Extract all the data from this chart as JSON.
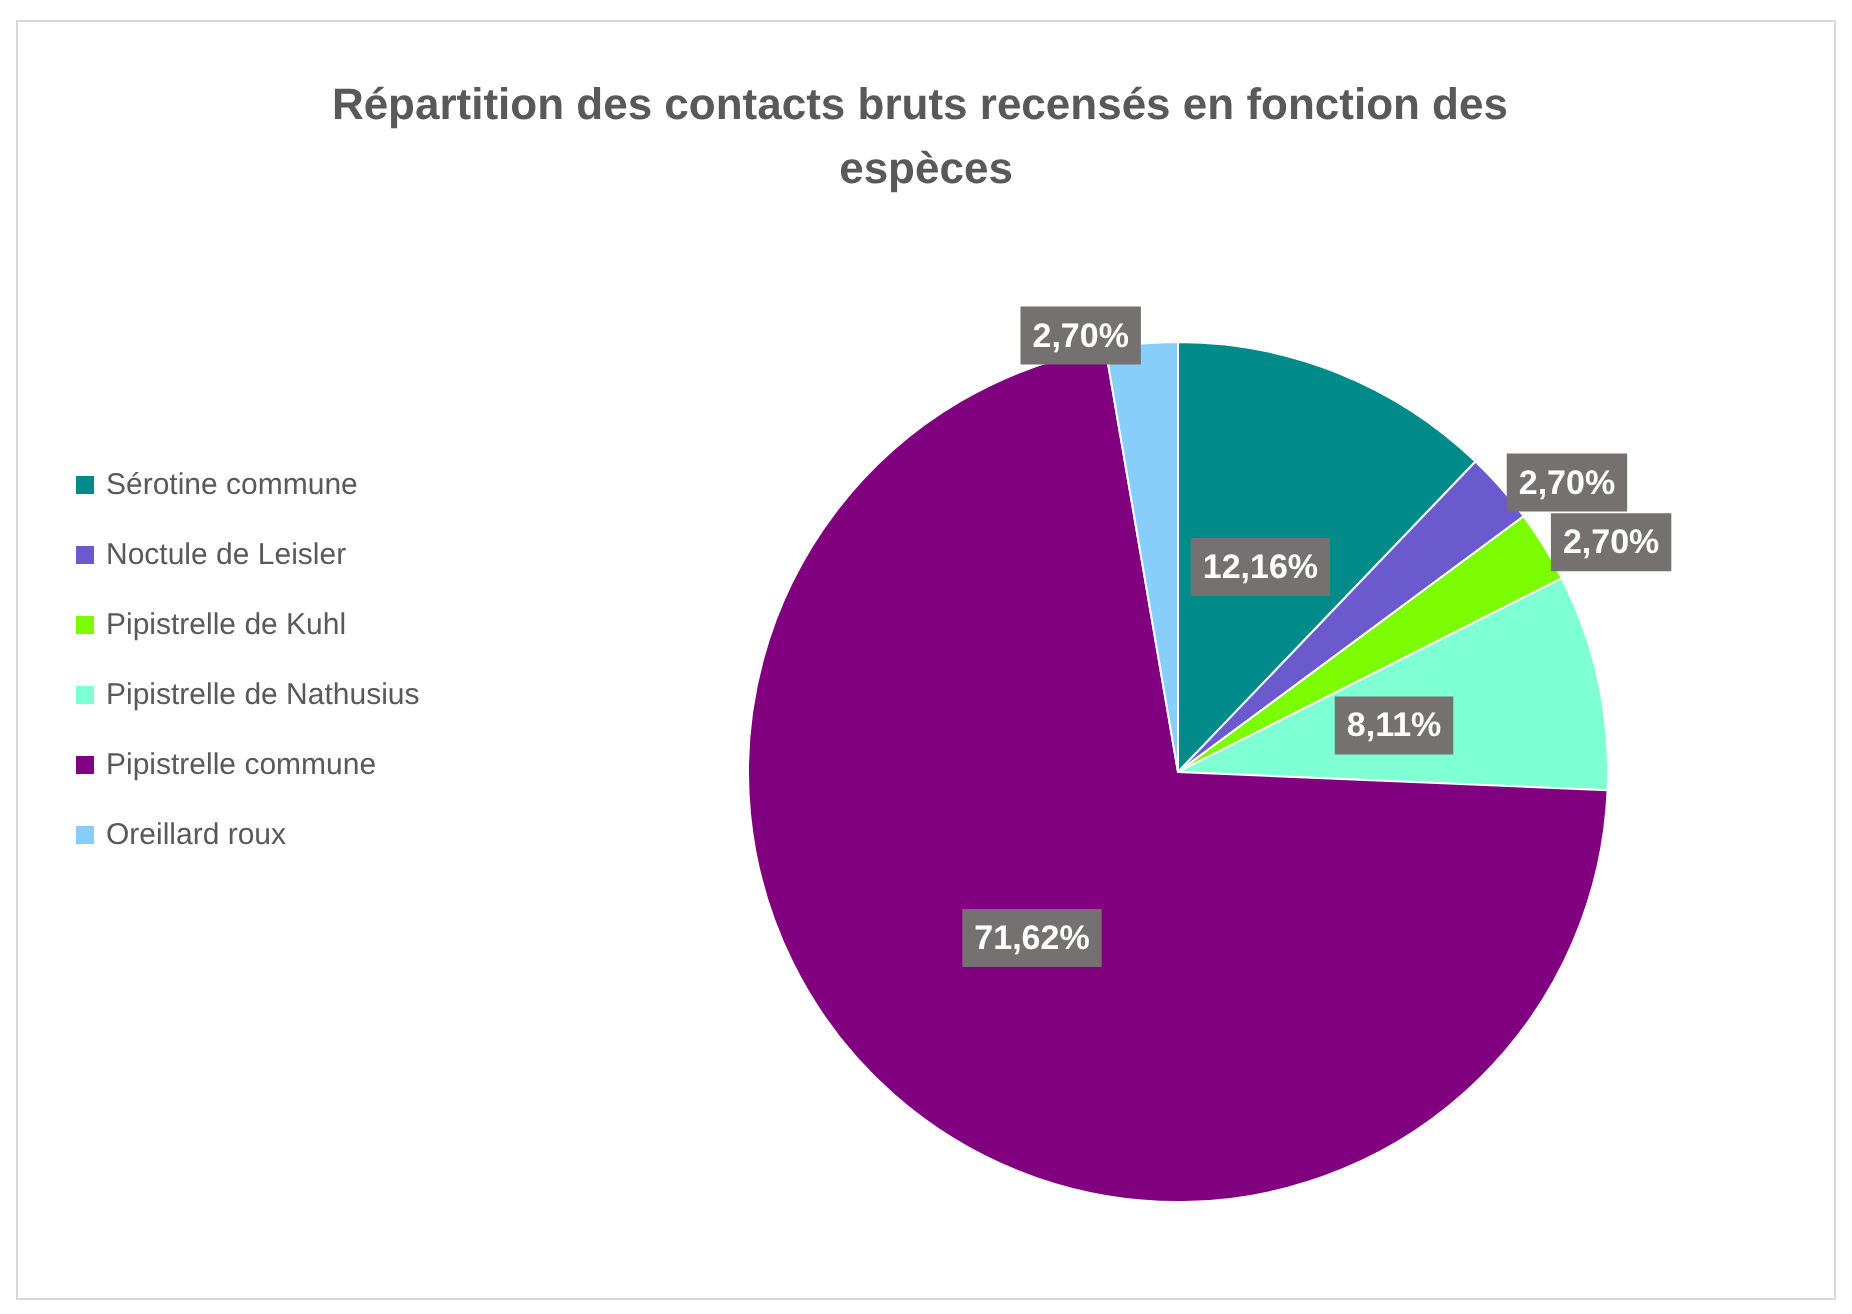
{
  "chart_data": {
    "type": "pie",
    "title": "Répartition des contacts bruts recensés en fonction des espèces",
    "categories": [
      "Sérotine commune",
      "Noctule de Leisler",
      "Pipistrelle de Kuhl",
      "Pipistrelle de Nathusius",
      "Pipistrelle commune",
      "Oreillard roux"
    ],
    "values": [
      12.16,
      2.7,
      2.7,
      8.11,
      71.62,
      2.7
    ],
    "value_labels": [
      "12,16%",
      "2,70%",
      "2,70%",
      "8,11%",
      "71,62%",
      "2,70%"
    ],
    "colors": [
      "#008b8b",
      "#6a5acd",
      "#7cfc00",
      "#7fffd4",
      "#800080",
      "#87cefa"
    ],
    "legend": "left"
  }
}
